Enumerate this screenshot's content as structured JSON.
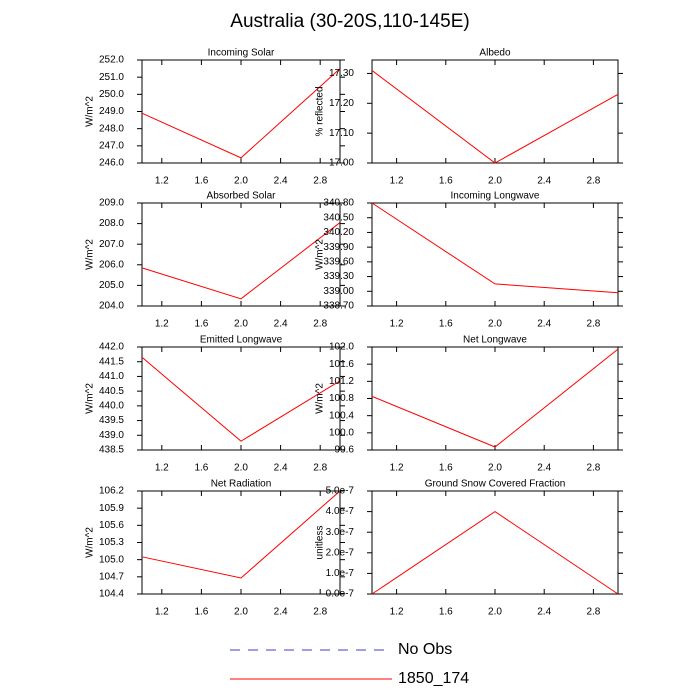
{
  "title": "Australia (30-20S,110-145E)",
  "legend": [
    {
      "name": "No Obs",
      "color": "#3b3bd6",
      "dashed": true
    },
    {
      "name": "1850_174",
      "color": "#ff0000",
      "dashed": false
    }
  ],
  "chart_data": [
    {
      "type": "line",
      "title": "Incoming Solar",
      "y_label": "W/m^2",
      "x": [
        1,
        2,
        3
      ],
      "values": [
        248.9,
        246.3,
        251.5
      ],
      "color": "#ff0000",
      "xlim": [
        1,
        3
      ],
      "xticks": [
        1.2,
        1.6,
        {
          "value": 2,
          "label": "2.0"
        },
        2.4,
        2.8
      ],
      "ylim": [
        246,
        252
      ],
      "yticks": [
        {
          "value": 246,
          "label": "246.0"
        },
        {
          "value": 247,
          "label": "247.0"
        },
        {
          "value": 248,
          "label": "248.0"
        },
        {
          "value": 249,
          "label": "249.0"
        },
        {
          "value": 250,
          "label": "250.0"
        },
        {
          "value": 251,
          "label": "251.0"
        },
        {
          "value": 252,
          "label": "252.0"
        }
      ]
    },
    {
      "type": "line",
      "title": "Albedo",
      "y_label": "% reflected",
      "x": [
        1,
        2,
        3
      ],
      "values": [
        17.31,
        17.0,
        17.23
      ],
      "color": "#ff0000",
      "xlim": [
        1,
        3
      ],
      "xticks": [
        1.2,
        1.6,
        {
          "value": 2,
          "label": "2.0"
        },
        2.4,
        2.8
      ],
      "ylim": [
        17.0,
        17.345
      ],
      "yticks": [
        {
          "value": 17.0,
          "label": "17.00"
        },
        {
          "value": 17.1,
          "label": "17.10"
        },
        {
          "value": 17.2,
          "label": "17.20"
        },
        {
          "value": 17.3,
          "label": "17.30"
        }
      ]
    },
    {
      "type": "line",
      "title": "Absorbed Solar",
      "y_label": "W/m^2",
      "x": [
        1,
        2,
        3
      ],
      "values": [
        205.85,
        204.35,
        208.05
      ],
      "color": "#ff0000",
      "xlim": [
        1,
        3
      ],
      "xticks": [
        1.2,
        1.6,
        {
          "value": 2,
          "label": "2.0"
        },
        2.4,
        2.8
      ],
      "ylim": [
        204,
        209
      ],
      "yticks": [
        {
          "value": 204,
          "label": "204.0"
        },
        {
          "value": 205,
          "label": "205.0"
        },
        {
          "value": 206,
          "label": "206.0"
        },
        {
          "value": 207,
          "label": "207.0"
        },
        {
          "value": 208,
          "label": "208.0"
        },
        {
          "value": 209,
          "label": "209.0"
        }
      ]
    },
    {
      "type": "line",
      "title": "Incoming Longwave",
      "y_label": "W/m^2",
      "x": [
        1,
        2,
        3
      ],
      "values": [
        340.8,
        339.15,
        338.97
      ],
      "color": "#ff0000",
      "xlim": [
        1,
        3
      ],
      "xticks": [
        1.2,
        1.6,
        {
          "value": 2,
          "label": "2.0"
        },
        2.4,
        2.8
      ],
      "ylim": [
        338.7,
        340.8
      ],
      "yticks": [
        {
          "value": 338.7,
          "label": "338.70"
        },
        {
          "value": 339.0,
          "label": "339.00"
        },
        {
          "value": 339.3,
          "label": "339.30"
        },
        {
          "value": 339.6,
          "label": "339.60"
        },
        {
          "value": 339.9,
          "label": "339.90"
        },
        {
          "value": 340.2,
          "label": "340.20"
        },
        {
          "value": 340.5,
          "label": "340.50"
        },
        {
          "value": 340.8,
          "label": "340.80"
        }
      ]
    },
    {
      "type": "line",
      "title": "Emitted Longwave",
      "y_label": "W/m^2",
      "x": [
        1,
        2,
        3
      ],
      "values": [
        441.65,
        438.8,
        440.85
      ],
      "color": "#ff0000",
      "xlim": [
        1,
        3
      ],
      "xticks": [
        1.2,
        1.6,
        {
          "value": 2,
          "label": "2.0"
        },
        2.4,
        2.8
      ],
      "ylim": [
        438.5,
        442
      ],
      "yticks": [
        438.5,
        {
          "value": 439,
          "label": "439.0"
        },
        439.5,
        {
          "value": 440,
          "label": "440.0"
        },
        440.5,
        {
          "value": 441,
          "label": "441.0"
        },
        441.5,
        {
          "value": 442,
          "label": "442.0"
        }
      ]
    },
    {
      "type": "line",
      "title": "Net Longwave",
      "y_label": "W/m^2",
      "x": [
        1,
        2,
        3
      ],
      "values": [
        100.85,
        99.67,
        101.95
      ],
      "color": "#ff0000",
      "xlim": [
        1,
        3
      ],
      "xticks": [
        1.2,
        1.6,
        {
          "value": 2,
          "label": "2.0"
        },
        2.4,
        2.8
      ],
      "ylim": [
        99.6,
        102
      ],
      "yticks": [
        99.6,
        {
          "value": 100,
          "label": "100.0"
        },
        100.4,
        100.8,
        101.2,
        101.6,
        {
          "value": 102,
          "label": "102.0"
        }
      ]
    },
    {
      "type": "line",
      "title": "Net Radiation",
      "y_label": "W/m^2",
      "x": [
        1,
        2,
        3
      ],
      "values": [
        105.05,
        104.68,
        106.2
      ],
      "color": "#ff0000",
      "xlim": [
        1,
        3
      ],
      "xticks": [
        1.2,
        1.6,
        {
          "value": 2,
          "label": "2.0"
        },
        2.4,
        2.8
      ],
      "ylim": [
        104.4,
        106.2
      ],
      "yticks": [
        104.4,
        104.7,
        {
          "value": 105,
          "label": "105.0"
        },
        105.3,
        105.6,
        105.9,
        106.2
      ]
    },
    {
      "type": "line",
      "title": "Ground Snow Covered Fraction",
      "y_label": "unitless",
      "x": [
        1,
        2,
        3
      ],
      "values": [
        0,
        4e-07,
        0
      ],
      "color": "#ff0000",
      "xlim": [
        1,
        3
      ],
      "xticks": [
        1.2,
        1.6,
        {
          "value": 2,
          "label": "2.0"
        },
        2.4,
        2.8
      ],
      "ylim": [
        0,
        5e-07
      ],
      "yticks": [
        {
          "value": 0,
          "label": "0.0e-7"
        },
        {
          "value": 1e-07,
          "label": "1.0e-7"
        },
        {
          "value": 2e-07,
          "label": "2.0e-7"
        },
        {
          "value": 3e-07,
          "label": "3.0e-7"
        },
        {
          "value": 4e-07,
          "label": "4.0e-7"
        },
        {
          "value": 5e-07,
          "label": "5.0e-7"
        }
      ]
    }
  ]
}
